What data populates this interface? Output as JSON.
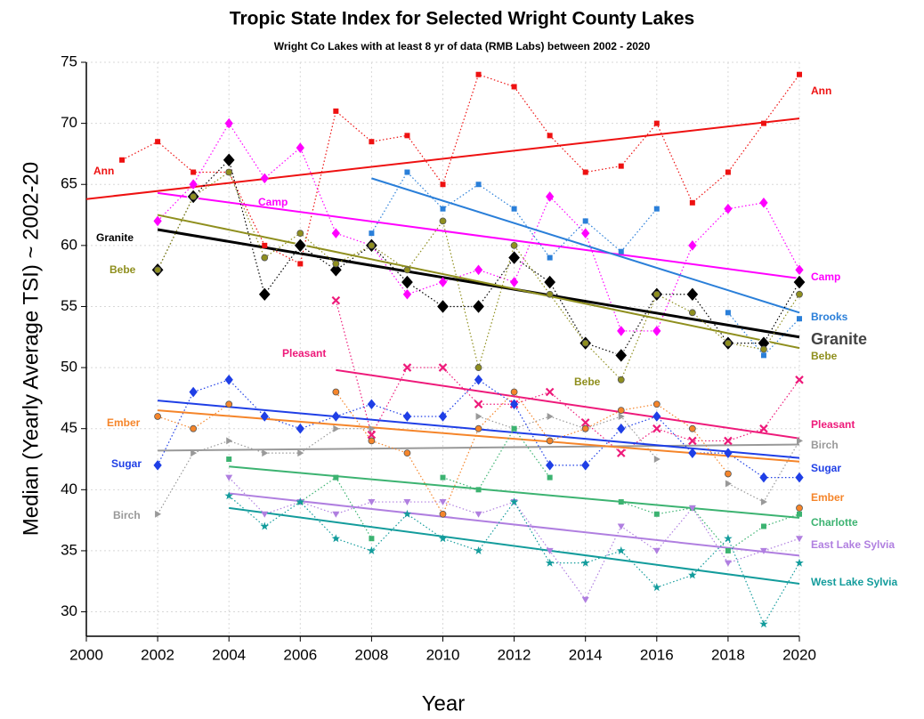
{
  "chart_data": {
    "type": "line",
    "title": "Tropic State Index for Selected Wright County Lakes",
    "subtitle": "Wright Co Lakes with at least 8 yr of data (RMB Labs) between 2002 - 2020",
    "x_label": "Year",
    "y_label": "Median (Yearly Average TSI) ~ 2002-20",
    "x": [
      2001,
      2002,
      2003,
      2004,
      2005,
      2006,
      2007,
      2008,
      2009,
      2010,
      2011,
      2012,
      2013,
      2014,
      2015,
      2016,
      2017,
      2018,
      2019,
      2020
    ],
    "xlim": [
      2000,
      2020
    ],
    "xticks": [
      2000,
      2002,
      2004,
      2006,
      2008,
      2010,
      2012,
      2014,
      2016,
      2018,
      2020
    ],
    "ylim": [
      28,
      75
    ],
    "yticks": [
      30,
      35,
      40,
      45,
      50,
      55,
      60,
      65,
      70,
      75
    ],
    "grid": true,
    "series": [
      {
        "name": "Ann",
        "color": "#ee1111",
        "marker": "square",
        "values": [
          67,
          68.5,
          66,
          66,
          60,
          58.5,
          71,
          68.5,
          69,
          65,
          74,
          73,
          69,
          66,
          66.5,
          70,
          63.5,
          66,
          70,
          74
        ],
        "trend_x": [
          2000,
          2020
        ],
        "trend": [
          63.8,
          70.4
        ]
      },
      {
        "name": "Camp",
        "color": "#ff00ff",
        "marker": "diamond",
        "values": [
          null,
          62,
          65,
          70,
          65.5,
          68,
          61,
          60,
          56,
          57,
          58,
          57,
          64,
          61,
          53,
          53,
          60,
          63,
          63.5,
          58
        ],
        "trend_x": [
          2002,
          2020
        ],
        "trend": [
          64.3,
          57.3
        ]
      },
      {
        "name": "Brooks",
        "color": "#2a7fd9",
        "marker": "square",
        "values": [
          null,
          null,
          null,
          null,
          null,
          null,
          null,
          61,
          66,
          63,
          65,
          63,
          59,
          62,
          59.5,
          63,
          null,
          54.5,
          51,
          54
        ],
        "trend_x": [
          2008,
          2020
        ],
        "trend": [
          65.5,
          54.5
        ]
      },
      {
        "name": "Granite",
        "color": "#000000",
        "marker": "bigdiamond",
        "values": [
          null,
          58,
          64,
          67,
          56,
          60,
          58,
          60,
          57,
          55,
          55,
          59,
          57,
          52,
          51,
          56,
          56,
          52,
          52,
          57
        ],
        "trend_x": [
          2002,
          2020
        ],
        "trend": [
          61.3,
          52.5
        ]
      },
      {
        "name": "Bebe",
        "color": "#8f8f1e",
        "marker": "circle",
        "values": [
          null,
          58,
          64,
          66,
          59,
          61,
          58.5,
          60,
          58,
          62,
          50,
          60,
          56,
          52,
          49,
          56,
          54.5,
          52,
          51.5,
          56
        ],
        "trend_x": [
          2002,
          2020
        ],
        "trend": [
          62.5,
          51.6
        ]
      },
      {
        "name": "Pleasant",
        "color": "#ee1a7a",
        "marker": "x",
        "values": [
          null,
          null,
          null,
          null,
          null,
          null,
          55.5,
          44.5,
          50,
          50,
          47,
          47,
          48,
          45.5,
          43,
          45,
          44,
          44,
          45,
          49
        ],
        "trend_x": [
          2007,
          2020
        ],
        "trend": [
          49.8,
          44.2
        ]
      },
      {
        "name": "Birch",
        "color": "#999999",
        "marker": "triangle-right",
        "values": [
          null,
          38,
          43,
          44,
          43,
          43,
          45,
          45,
          null,
          null,
          46,
          45,
          46,
          45,
          46,
          42.5,
          null,
          40.5,
          39,
          44
        ],
        "trend_x": [
          2002,
          2020
        ],
        "trend": [
          43.2,
          43.7
        ]
      },
      {
        "name": "Sugar",
        "color": "#1f3fe6",
        "marker": "diamond",
        "values": [
          null,
          42,
          48,
          49,
          46,
          45,
          46,
          47,
          46,
          46,
          49,
          47,
          42,
          42,
          45,
          46,
          43,
          43,
          41,
          41
        ],
        "trend_x": [
          2002,
          2020
        ],
        "trend": [
          47.3,
          42.6
        ]
      },
      {
        "name": "Ember",
        "color": "#f5852a",
        "marker": "circle",
        "values": [
          null,
          46,
          45,
          47,
          null,
          null,
          48,
          44,
          43,
          38,
          45,
          48,
          44,
          45,
          46.5,
          47,
          45,
          41.3,
          null,
          38.5
        ],
        "trend_x": [
          2002,
          2020
        ],
        "trend": [
          46.5,
          42.3
        ]
      },
      {
        "name": "Charlotte",
        "color": "#3cb371",
        "marker": "square",
        "values": [
          null,
          null,
          null,
          42.5,
          null,
          39,
          41,
          36,
          null,
          41,
          40,
          45,
          41,
          null,
          39,
          38,
          38.5,
          35,
          37,
          38
        ],
        "trend_x": [
          2004,
          2020
        ],
        "trend": [
          41.9,
          37.7
        ]
      },
      {
        "name": "East Lake Sylvia",
        "color": "#b07fe0",
        "marker": "triangle-down",
        "values": [
          null,
          null,
          null,
          41,
          38,
          39,
          38,
          39,
          39,
          39,
          38,
          39,
          35,
          31,
          37,
          35,
          38.5,
          34,
          35,
          36
        ],
        "trend_x": [
          2004,
          2020
        ],
        "trend": [
          39.7,
          34.6
        ]
      },
      {
        "name": "West Lake Sylvia",
        "color": "#139c9c",
        "marker": "star",
        "values": [
          null,
          null,
          null,
          39.5,
          37,
          39,
          36,
          35,
          38,
          36,
          35,
          39,
          34,
          34,
          35,
          32,
          33,
          36,
          29,
          34
        ],
        "trend_x": [
          2004,
          2020
        ],
        "trend": [
          38.5,
          32.3
        ]
      }
    ]
  }
}
